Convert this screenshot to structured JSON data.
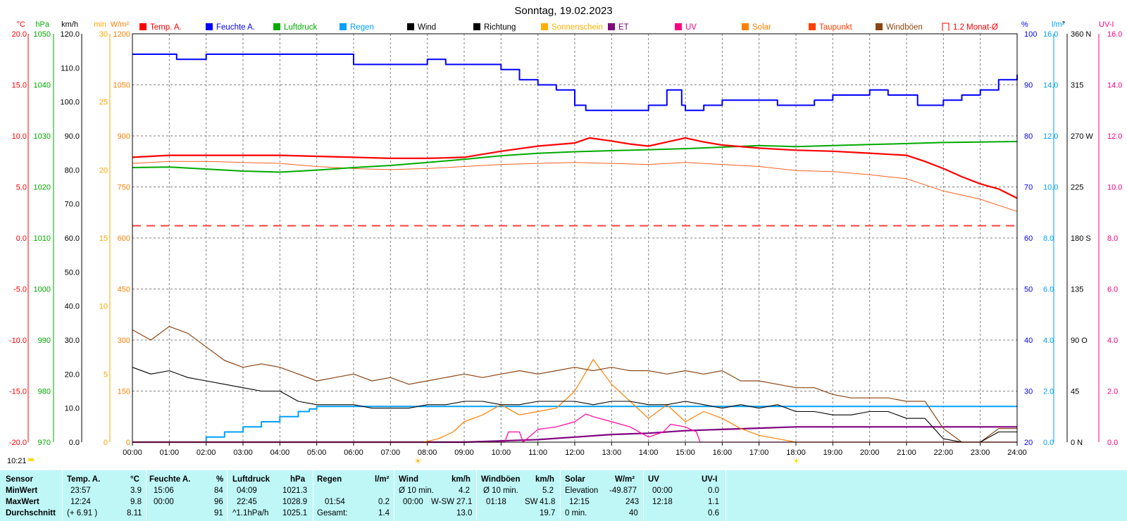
{
  "title": "Sonntag, 19.02.2023",
  "time_label": "10:21",
  "colors": {
    "temp": "#ff0000",
    "humidity": "#0000ff",
    "pressure": "#00aa00",
    "rain": "#00a0ff",
    "wind": "#000000",
    "direction": "#000000",
    "sunshine": "#ffb000",
    "et": "#800080",
    "uv": "#ff00a0",
    "solar": "#ff8000",
    "dewpoint": "#ff6020",
    "gust": "#8b4513",
    "avg": "#ff4040"
  },
  "left_axes": [
    {
      "unit": "°C",
      "color": "#ff0000",
      "ticks": [
        "20.0",
        "15.0",
        "10.0",
        "5.0",
        "0.0",
        "-5.0",
        "-10.0",
        "-15.0",
        "-20.0"
      ]
    },
    {
      "unit": "hPa",
      "color": "#00aa00",
      "ticks": [
        "1050",
        "1040",
        "1030",
        "1020",
        "1010",
        "1000",
        "990",
        "980",
        "970"
      ]
    },
    {
      "unit": "km/h",
      "color": "#000000",
      "ticks": [
        "120.0",
        "110.0",
        "100.0",
        "90.0",
        "80.0",
        "70.0",
        "60.0",
        "50.0",
        "40.0",
        "30.0",
        "20.0",
        "10.0",
        "0.0"
      ]
    },
    {
      "unit": "min",
      "color": "#ffa500",
      "ticks": [
        "30",
        "25",
        "20",
        "15",
        "10",
        "5",
        "0"
      ]
    },
    {
      "unit": "W/m²",
      "color": "#ff8000",
      "ticks": [
        "1200",
        "1050",
        "900",
        "750",
        "600",
        "450",
        "300",
        "150",
        "0"
      ]
    }
  ],
  "right_axes": [
    {
      "unit": "%",
      "color": "#0000ff",
      "ticks": [
        "100",
        "90",
        "80",
        "70",
        "60",
        "50",
        "40",
        "30",
        "20"
      ]
    },
    {
      "unit": "l/m²",
      "color": "#00a0ff",
      "ticks": [
        "16.0",
        "14.0",
        "12.0",
        "10.0",
        "8.0",
        "6.0",
        "4.0",
        "2.0",
        "0.0"
      ]
    },
    {
      "unit": "°",
      "color": "#000000",
      "ticks": [
        "360 N",
        "315",
        "270 W",
        "225",
        "180 S",
        "135",
        "90 O",
        "45",
        "0 N"
      ]
    },
    {
      "unit": "UV-I",
      "color": "#ff0080",
      "ticks": [
        "16.0",
        "14.0",
        "12.0",
        "10.0",
        "8.0",
        "6.0",
        "4.0",
        "2.0",
        "0.0"
      ]
    }
  ],
  "legend": [
    {
      "label": "Temp. A.",
      "color": "#ff0000",
      "box": "#ff0000"
    },
    {
      "label": "Feuchte A.",
      "color": "#0000ff",
      "box": "#0000ff"
    },
    {
      "label": "Luftdruck",
      "color": "#00aa00",
      "box": "#00aa00"
    },
    {
      "label": "Regen",
      "color": "#00a0ff",
      "box": "#00a0ff"
    },
    {
      "label": "Wind",
      "color": "#000000",
      "box": "#000000"
    },
    {
      "label": "Richtung",
      "color": "#000000",
      "box": "#000000"
    },
    {
      "label": "Sonnenschein",
      "color": "#ffb000",
      "box": "#ffb000"
    },
    {
      "label": "ET",
      "color": "#800080",
      "box": "#800080"
    },
    {
      "label": "UV",
      "color": "#ff0080",
      "box": "#ff0080"
    },
    {
      "label": "Solar",
      "color": "#ff8000",
      "box": "#ff8000"
    },
    {
      "label": "Taupunkt",
      "color": "#ff4000",
      "box": "#ff4000"
    },
    {
      "label": "Windböen",
      "color": "#8b4513",
      "box": "#8b4513"
    },
    {
      "label": "1.2 Monat-Ø",
      "color": "#ff0000",
      "box": "none"
    }
  ],
  "x_ticks": [
    "00:00",
    "01:00",
    "02:00",
    "03:00",
    "04:00",
    "05:00",
    "06:00",
    "07:00",
    "08:00",
    "09:00",
    "10:00",
    "11:00",
    "12:00",
    "13:00",
    "14:00",
    "15:00",
    "16:00",
    "17:00",
    "18:00",
    "19:00",
    "20:00",
    "21:00",
    "22:00",
    "23:00",
    "24:00"
  ],
  "chart_data": {
    "type": "line",
    "title": "Sonntag, 19.02.2023",
    "x_unit": "hour",
    "xlim": [
      0,
      24
    ],
    "series": [
      {
        "name": "Temp. A.",
        "unit": "°C",
        "ylim": [
          -20,
          20
        ],
        "x": [
          0,
          1,
          2,
          3,
          4,
          5,
          6,
          7,
          8,
          9,
          10,
          11,
          12,
          12.4,
          13,
          13.5,
          14,
          14.5,
          15,
          15.5,
          16,
          17,
          18,
          19,
          20,
          21,
          21.5,
          22,
          22.5,
          23,
          23.5,
          24
        ],
        "y": [
          7.9,
          8.1,
          8.1,
          8.1,
          8.1,
          8.0,
          7.9,
          7.8,
          7.8,
          7.9,
          8.5,
          9.0,
          9.3,
          9.8,
          9.5,
          9.2,
          9.0,
          9.4,
          9.8,
          9.4,
          9.1,
          8.8,
          8.6,
          8.5,
          8.3,
          8.1,
          7.5,
          6.8,
          6.0,
          5.3,
          4.8,
          3.9
        ]
      },
      {
        "name": "Taupunkt",
        "unit": "°C",
        "ylim": [
          -20,
          20
        ],
        "x": [
          0,
          1,
          2,
          3,
          4,
          5,
          6,
          7,
          8,
          9,
          10,
          11,
          12,
          13,
          14,
          15,
          16,
          17,
          18,
          19,
          20,
          21,
          22,
          23,
          24
        ],
        "y": [
          7.3,
          7.5,
          7.5,
          7.4,
          7.3,
          7.0,
          6.8,
          6.7,
          6.8,
          7.0,
          7.2,
          7.3,
          7.4,
          7.3,
          7.2,
          7.4,
          7.2,
          7.0,
          6.6,
          6.5,
          6.2,
          5.8,
          4.6,
          3.8,
          2.6
        ]
      },
      {
        "name": "Feuchte A.",
        "unit": "%",
        "ylim": [
          20,
          100
        ],
        "x": [
          0,
          1,
          1.2,
          1.8,
          2,
          2,
          3,
          4,
          5,
          6,
          6.2,
          7,
          8,
          8.5,
          9,
          10,
          10.5,
          11,
          11.5,
          12,
          12.3,
          13,
          13.5,
          14,
          14.5,
          14.9,
          15,
          15.5,
          16,
          17,
          17.5,
          18,
          18.5,
          19,
          20,
          20.5,
          21,
          21.3,
          22,
          22.5,
          23,
          23.5,
          24
        ],
        "y": [
          96,
          96,
          95,
          95,
          96,
          96,
          96,
          96,
          96,
          94,
          94,
          94,
          95,
          94,
          94,
          93,
          91,
          90,
          89,
          86,
          85,
          85,
          85,
          86,
          89,
          86,
          85,
          86,
          87,
          87,
          86,
          86,
          87,
          88,
          89,
          88,
          88,
          86,
          87,
          88,
          89,
          91,
          92
        ]
      },
      {
        "name": "Luftdruck",
        "unit": "hPa",
        "ylim": [
          970,
          1050
        ],
        "x": [
          0,
          1,
          2,
          3,
          4,
          5,
          6,
          7,
          8,
          9,
          10,
          11,
          12,
          13,
          14,
          15,
          16,
          17,
          18,
          19,
          20,
          21,
          22,
          23,
          24
        ],
        "y": [
          1023.8,
          1023.9,
          1023.5,
          1023.1,
          1022.9,
          1023.3,
          1023.8,
          1024.2,
          1024.8,
          1025.4,
          1026.1,
          1026.6,
          1026.9,
          1027.1,
          1027.3,
          1027.5,
          1027.8,
          1028.1,
          1027.9,
          1028.1,
          1028.3,
          1028.5,
          1028.7,
          1028.8,
          1028.9
        ]
      },
      {
        "name": "Regen",
        "unit": "l/m²",
        "ylim": [
          0,
          16
        ],
        "x": [
          0,
          1.9,
          2.0,
          2.5,
          3,
          3.5,
          4,
          4.5,
          4.8,
          5,
          24
        ],
        "y": [
          0,
          0,
          0.2,
          0.4,
          0.6,
          0.8,
          1.0,
          1.2,
          1.3,
          1.4,
          1.4
        ]
      },
      {
        "name": "Wind",
        "unit": "km/h",
        "ylim": [
          0,
          120
        ],
        "x": [
          0,
          0.5,
          1,
          1.5,
          2,
          2.5,
          3,
          3.5,
          4,
          4.5,
          5,
          5.5,
          6,
          6.5,
          7,
          7.5,
          8,
          8.5,
          9,
          9.5,
          10,
          10.5,
          11,
          11.5,
          12,
          12.5,
          13,
          13.5,
          14,
          14.5,
          15,
          15.5,
          16,
          16.5,
          17,
          17.5,
          18,
          18.5,
          19,
          19.5,
          20,
          20.5,
          21,
          21.5,
          22,
          22.5,
          23,
          23.5,
          24
        ],
        "y": [
          22,
          20,
          21,
          19,
          18,
          17,
          16,
          15,
          15,
          12,
          11,
          11,
          11,
          10,
          10,
          10,
          11,
          11,
          12,
          12,
          11,
          11,
          12,
          12,
          12,
          11,
          12,
          12,
          11,
          11,
          12,
          11,
          10,
          11,
          10,
          11,
          9,
          9,
          8,
          8,
          9,
          9,
          7,
          7,
          1,
          0,
          0,
          3,
          3
        ]
      },
      {
        "name": "Windböen",
        "unit": "km/h",
        "ylim": [
          0,
          120
        ],
        "x": [
          0,
          0.5,
          1,
          1.5,
          2,
          2.5,
          3,
          3.5,
          4,
          4.5,
          5,
          5.5,
          6,
          6.5,
          7,
          7.5,
          8,
          8.5,
          9,
          9.5,
          10,
          10.5,
          11,
          11.5,
          12,
          12.5,
          13,
          13.5,
          14,
          14.5,
          15,
          15.5,
          16,
          16.5,
          17,
          17.5,
          18,
          18.5,
          19,
          19.5,
          20,
          20.5,
          21,
          21.5,
          22,
          22.5,
          23,
          23.5,
          24
        ],
        "y": [
          33,
          30,
          34,
          32,
          28,
          24,
          22,
          23,
          22,
          20,
          18,
          19,
          20,
          18,
          19,
          17,
          18,
          19,
          20,
          19,
          20,
          21,
          20,
          21,
          22,
          21,
          22,
          21,
          21,
          20,
          21,
          20,
          21,
          18,
          18,
          17,
          16,
          16,
          14,
          13,
          13,
          13,
          12,
          12,
          4,
          0,
          0,
          4,
          4
        ]
      },
      {
        "name": "Solar",
        "unit": "W/m²",
        "ylim": [
          0,
          1200
        ],
        "x": [
          0,
          7.9,
          8.3,
          8.7,
          9,
          9.5,
          10,
          10.5,
          11,
          11.5,
          12,
          12.5,
          13,
          13.5,
          14,
          14.5,
          15,
          15.5,
          16,
          16.5,
          17,
          17.5,
          18,
          24
        ],
        "y": [
          0,
          0,
          10,
          30,
          60,
          80,
          110,
          80,
          90,
          100,
          150,
          243,
          170,
          120,
          70,
          110,
          60,
          90,
          70,
          40,
          20,
          10,
          0,
          0
        ]
      },
      {
        "name": "UV",
        "unit": "UV-I",
        "ylim": [
          0,
          16
        ],
        "x": [
          0,
          10.1,
          10.2,
          10.5,
          10.6,
          11,
          11.5,
          12,
          12.3,
          12.5,
          13,
          13.5,
          14,
          14.4,
          14.6,
          15,
          15.3,
          15.4,
          24
        ],
        "y": [
          0,
          0,
          0.4,
          0.4,
          0,
          0.5,
          0.6,
          0.8,
          1.1,
          1.0,
          0.8,
          0.6,
          0.2,
          0.4,
          0.7,
          0.6,
          0.4,
          0,
          0
        ]
      },
      {
        "name": "ET",
        "unit": "l/m²",
        "ylim": [
          0,
          16
        ],
        "x": [
          0,
          9,
          10,
          11,
          12,
          13,
          14,
          15,
          16,
          17,
          18,
          19,
          20,
          21,
          22,
          23,
          24
        ],
        "y": [
          0,
          0,
          0.05,
          0.1,
          0.2,
          0.3,
          0.35,
          0.45,
          0.5,
          0.55,
          0.6,
          0.6,
          0.6,
          0.6,
          0.6,
          0.6,
          0.6
        ]
      },
      {
        "name": "1.2 Monat-Ø",
        "unit": "°C",
        "ylim": [
          -20,
          20
        ],
        "x": [
          0,
          24
        ],
        "y": [
          1.2,
          1.2
        ]
      }
    ]
  },
  "stats": {
    "rows": [
      "Sensor",
      "MinWert",
      "MaxWert",
      "Durchschnitt"
    ],
    "temp": {
      "header": "Temp. A.",
      "unit": "°C",
      "min_time": "23:57",
      "min": "3.9",
      "max_time": "12:24",
      "max": "9.8",
      "avg_extra": "(+ 6.91 )",
      "avg": "8.11"
    },
    "hum": {
      "header": "Feuchte A.",
      "unit": "%",
      "min_time": "15:06",
      "min": "84",
      "max_time": "00:00",
      "max": "96",
      "avg": "91"
    },
    "press": {
      "header": "Luftdruck",
      "unit": "hPa",
      "min_time": "04:09",
      "min": "1021.3",
      "max_time": "22:45",
      "max": "1028.9",
      "avg_extra": "^1.1hPa/h",
      "avg": "1025.1"
    },
    "rain": {
      "header": "Regen",
      "unit": "l/m²",
      "max_time": "01:54",
      "max": "0.2",
      "total_label": "Gesamt:",
      "total": "1.4"
    },
    "wind": {
      "header": "Wind",
      "unit": "km/h",
      "min_label": "Ø 10 min.",
      "min": "4.2",
      "max_time": "00:00",
      "max_dir": "W-SW",
      "max": "27.1",
      "avg": "13.0"
    },
    "gust": {
      "header": "Windböen",
      "unit": "km/h",
      "min_label": "Ø 10 min.",
      "min": "5.2",
      "max_time": "01:18",
      "max_dir": "SW",
      "max": "41.8",
      "avg": "19.7"
    },
    "solar": {
      "header": "Solar",
      "unit": "W/m²",
      "min_label": "Elevation",
      "min": "-49.877",
      "max_time": "12:15",
      "max": "243",
      "avg_label": "0 min.",
      "avg": "40"
    },
    "uv": {
      "header": "UV",
      "unit": "UV-I",
      "min_time": "00:00",
      "min": "0.0",
      "max_time": "12:18",
      "max": "1.1",
      "avg": "0.6"
    }
  }
}
